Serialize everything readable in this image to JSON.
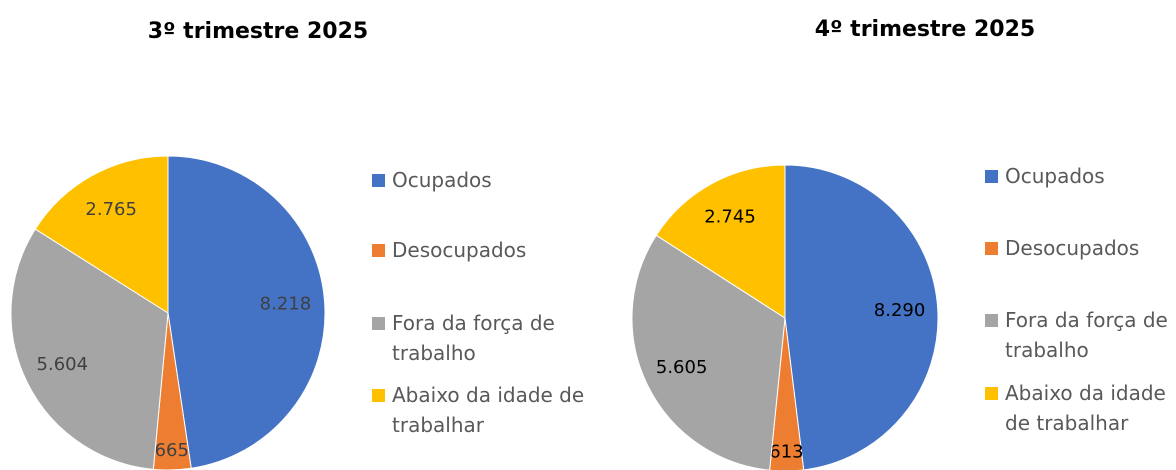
{
  "chart_data": [
    {
      "type": "pie",
      "title": "3º trimestre 2025",
      "categories": [
        "Ocupados",
        "Desocupados",
        "Fora da força de trabalho",
        "Abaixo da idade de trabalhar"
      ],
      "values": [
        8218,
        665,
        5604,
        2765
      ],
      "value_labels": [
        "8.218",
        "665",
        "5.604",
        "2.765"
      ],
      "colors": [
        "#4472c4",
        "#ed7d31",
        "#a5a5a5",
        "#ffc000"
      ],
      "legend": "right"
    },
    {
      "type": "pie",
      "title": "4º trimestre 2025",
      "categories": [
        "Ocupados",
        "Desocupados",
        "Fora da força de trabalho",
        "Abaixo da idade de trabalhar"
      ],
      "values": [
        8290,
        613,
        5605,
        2745
      ],
      "value_labels": [
        "8.290",
        "613",
        "5.605",
        "2.745"
      ],
      "colors": [
        "#4472c4",
        "#ed7d31",
        "#a5a5a5",
        "#ffc000"
      ],
      "legend": "right"
    }
  ]
}
